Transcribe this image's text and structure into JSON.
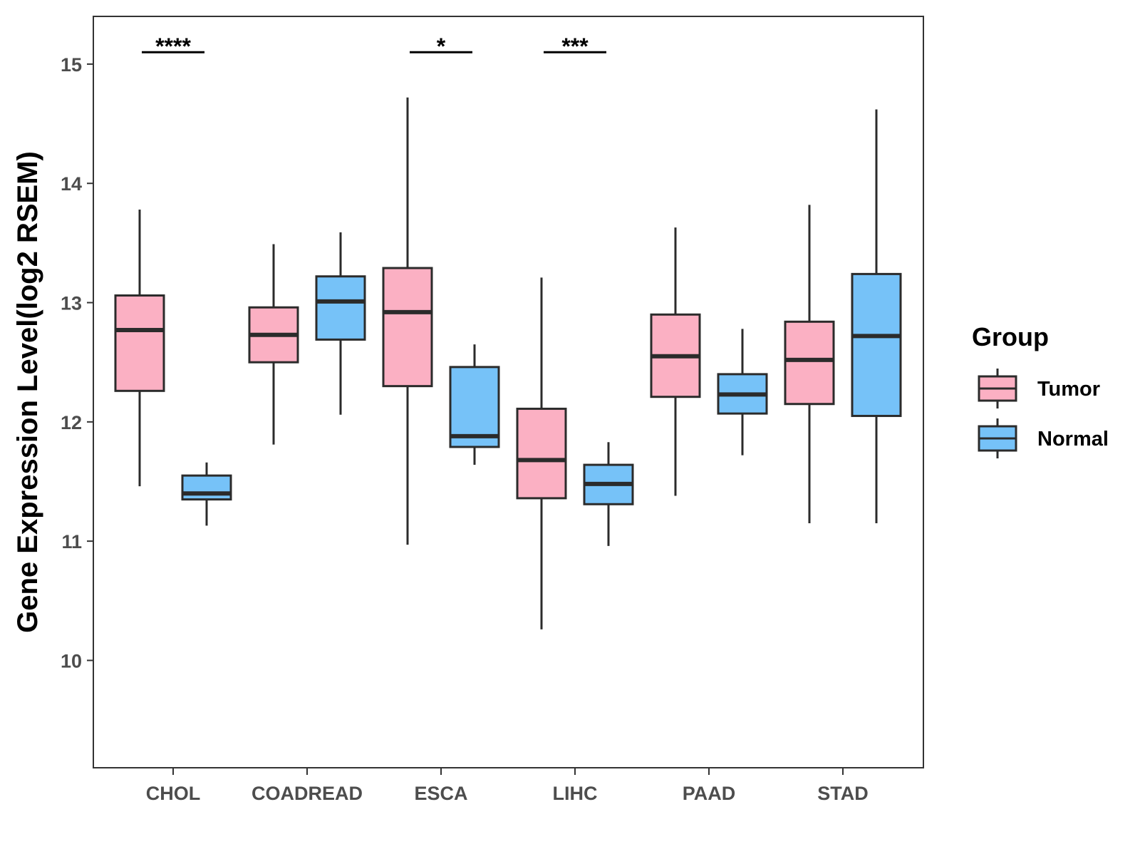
{
  "chart_data": {
    "type": "boxplot",
    "title": "",
    "xlabel": "",
    "ylabel": "Gene Expression Level(log2 RSEM)",
    "ylim": [
      9.1,
      15.4
    ],
    "yticks": [
      10,
      11,
      12,
      13,
      14,
      15
    ],
    "ytick_labels": [
      "10",
      "11",
      "12",
      "13",
      "14",
      "15"
    ],
    "grid": false,
    "categories": [
      "CHOL",
      "COADREAD",
      "ESCA",
      "LIHC",
      "PAAD",
      "STAD"
    ],
    "legend": {
      "title": "Group",
      "position": "right",
      "entries": [
        "Tumor",
        "Normal"
      ]
    },
    "series": [
      {
        "name": "Tumor",
        "color": "#FBB0C3",
        "boxes": [
          {
            "min": 11.46,
            "q1": 12.26,
            "median": 12.77,
            "q3": 13.06,
            "max": 13.78
          },
          {
            "min": 11.81,
            "q1": 12.5,
            "median": 12.73,
            "q3": 12.96,
            "max": 13.49
          },
          {
            "min": 10.97,
            "q1": 12.3,
            "median": 12.92,
            "q3": 13.29,
            "max": 14.72
          },
          {
            "min": 10.26,
            "q1": 11.36,
            "median": 11.68,
            "q3": 12.11,
            "max": 13.21
          },
          {
            "min": 11.38,
            "q1": 12.21,
            "median": 12.55,
            "q3": 12.9,
            "max": 13.63
          },
          {
            "min": 11.15,
            "q1": 12.15,
            "median": 12.52,
            "q3": 12.84,
            "max": 13.82
          }
        ]
      },
      {
        "name": "Normal",
        "color": "#76C2F8",
        "boxes": [
          {
            "min": 11.13,
            "q1": 11.35,
            "median": 11.4,
            "q3": 11.55,
            "max": 11.66
          },
          {
            "min": 12.06,
            "q1": 12.69,
            "median": 13.01,
            "q3": 13.22,
            "max": 13.59
          },
          {
            "min": 11.64,
            "q1": 11.79,
            "median": 11.88,
            "q3": 12.46,
            "max": 12.65
          },
          {
            "min": 10.96,
            "q1": 11.31,
            "median": 11.48,
            "q3": 11.64,
            "max": 11.83
          },
          {
            "min": 11.72,
            "q1": 12.07,
            "median": 12.23,
            "q3": 12.4,
            "max": 12.78
          },
          {
            "min": 11.15,
            "q1": 12.05,
            "median": 12.72,
            "q3": 13.24,
            "max": 14.62
          }
        ]
      }
    ],
    "significance": [
      {
        "category": "CHOL",
        "label": "****",
        "y": 15.1
      },
      {
        "category": "ESCA",
        "label": "*",
        "y": 15.1
      },
      {
        "category": "LIHC",
        "label": "***",
        "y": 15.1
      }
    ]
  }
}
